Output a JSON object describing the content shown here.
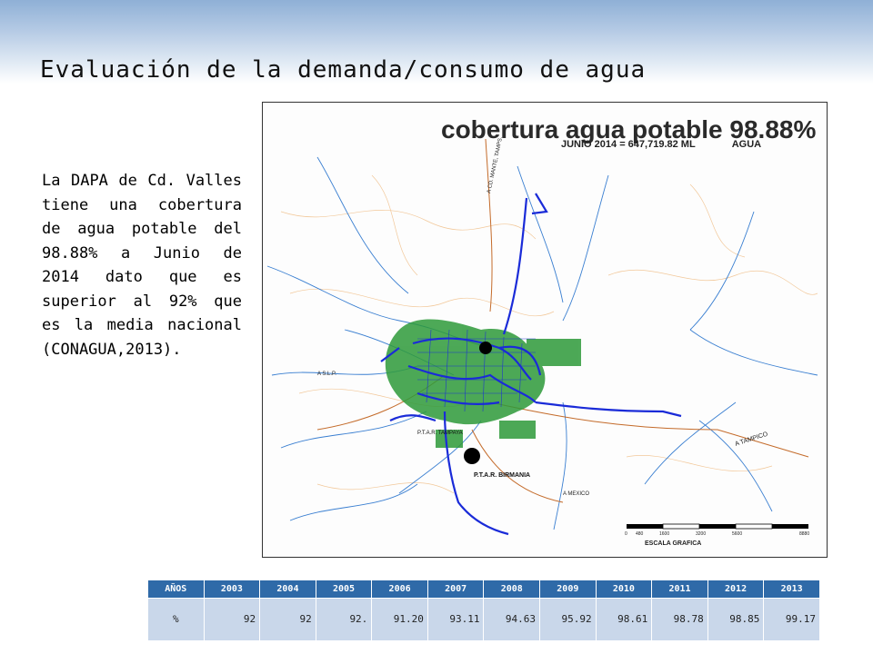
{
  "slide": {
    "title": "Evaluación de la demanda/consumo de agua",
    "description": "La DAPA de Cd. Valles tiene una cobertura de agua potable del 98.88% a Junio de 2014 dato que es superior al 92% que es la media nacional (CONAGUA,2013)."
  },
  "map": {
    "title": "cobertura agua potable 98.88%",
    "subtitle": "JUNIO 2014  =   647,719.82 ML",
    "subtitle_right": "AGUA",
    "labels": {
      "road_north": "A CD. MANTE, TAMPS.",
      "road_east": "A TAMPICO",
      "road_south": "A MEXICO",
      "slp": "A S.L.P.",
      "ptar_tampaya": "P.T.A.R. TAMPAYA",
      "ptar_birmania": "P.T.A.R. BIRMANIA"
    },
    "scale_title": "ESCALA GRAFICA",
    "scale_ticks": [
      "0",
      "480",
      "1600",
      "3200",
      "5600",
      "8880"
    ],
    "colors": {
      "network": "#1a2bd8",
      "urban_green": "#2e9a3a",
      "hydro": "#3a7fd1",
      "roads": "#c46b2a"
    }
  },
  "table": {
    "headers": [
      "AÑOS",
      "2003",
      "2004",
      "2005",
      "2006",
      "2007",
      "2008",
      "2009",
      "2010",
      "2011",
      "2012",
      "2013"
    ],
    "row": [
      "%",
      "92",
      "92",
      "92.",
      "91.20",
      "93.11",
      "94.63",
      "95.92",
      "98.61",
      "98.78",
      "98.85",
      "99.17"
    ]
  },
  "colors": {
    "header_blue": "#2f6aa8",
    "cell_blue": "#c9d7ea",
    "band_top": "#8fb0d6"
  }
}
